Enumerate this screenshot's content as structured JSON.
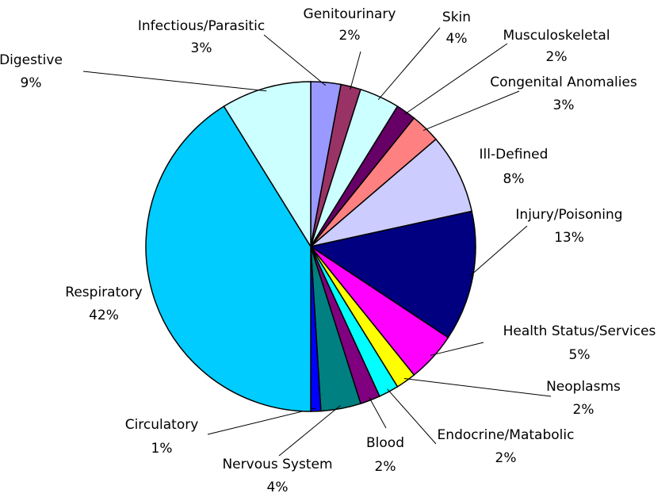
{
  "chart_data": {
    "type": "pie",
    "categories": [
      "Infectious/Parasitic",
      "Genitourinary",
      "Skin",
      "Musculoskeletal",
      "Congenital Anomalies",
      "Ill-Defined",
      "Injury/Poisoning",
      "Health Status/Services",
      "Neoplasms",
      "Endocrine/Matabolic",
      "Blood",
      "Nervous System",
      "Circulatory",
      "Respiratory",
      "Digestive"
    ],
    "values": [
      3,
      2,
      4,
      2,
      3,
      8,
      13,
      5,
      2,
      2,
      2,
      4,
      1,
      42,
      9
    ],
    "value_labels": [
      "3%",
      "2%",
      "4%",
      "2%",
      "3%",
      "8%",
      "13%",
      "5%",
      "2%",
      "2%",
      "2%",
      "4%",
      "1%",
      "42%",
      "9%"
    ],
    "colors": [
      "#9999ff",
      "#993366",
      "#ccffff",
      "#660066",
      "#ff8080",
      "#ccccff",
      "#000080",
      "#ff00ff",
      "#ffff00",
      "#00ffff",
      "#800080",
      "#008080",
      "#0000ff",
      "#00ccff",
      "#ccffff"
    ]
  }
}
